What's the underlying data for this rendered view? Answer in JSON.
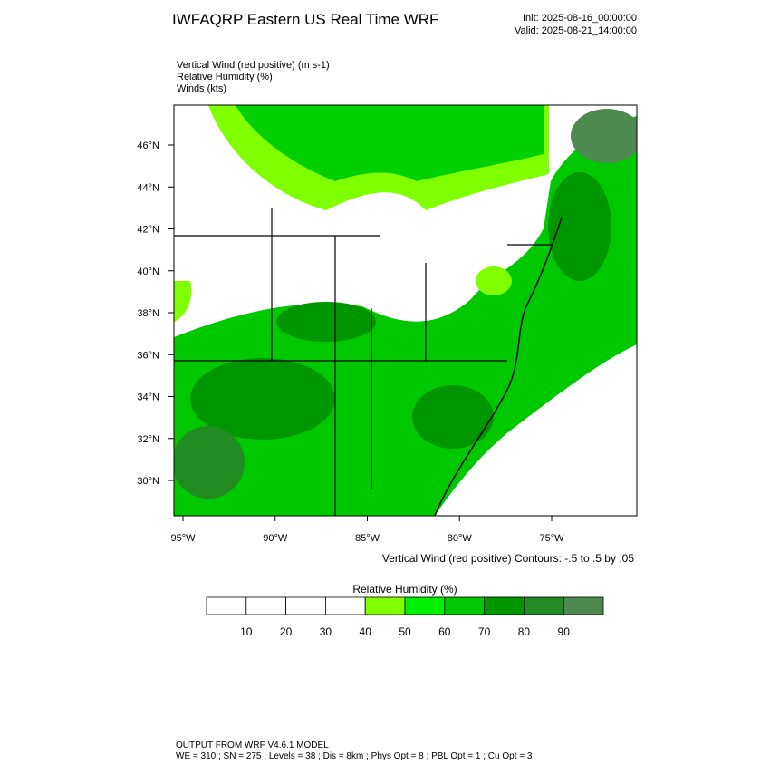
{
  "header": {
    "title": "IWFAQRP Eastern US Real Time WRF",
    "init": "Init: 2025-08-16_00:00:00",
    "valid": "Valid: 2025-08-21_14:00:00"
  },
  "fields": [
    "Vertical Wind (red positive)   (m s-1)",
    "Relative Humidity   (%)",
    "Winds   (kts)"
  ],
  "map": {
    "lat_labels": [
      "46°N",
      "44°N",
      "42°N",
      "40°N",
      "38°N",
      "36°N",
      "34°N",
      "32°N",
      "30°N"
    ],
    "lon_labels": [
      "95°W",
      "90°W",
      "85°W",
      "80°W",
      "75°W"
    ],
    "contour_note": "Vertical Wind (red positive) Contours: -.5 to .5 by .05"
  },
  "colorbar": {
    "title": "Relative Humidity  (%)",
    "colors": [
      "#ffffff",
      "#ffffff",
      "#ffffff",
      "#ffffff",
      "#80ff00",
      "#00f000",
      "#00c800",
      "#009600",
      "#228b22",
      "#4e8a50"
    ],
    "labels": [
      "10",
      "20",
      "30",
      "40",
      "50",
      "60",
      "70",
      "80",
      "90"
    ]
  },
  "footer": [
    "OUTPUT FROM WRF V4.6.1 MODEL",
    "WE = 310 ; SN = 275 ; Levels = 38 ; Dis = 8km ; Phys Opt = 8 ; PBL Opt = 1 ; Cu Opt = 3"
  ]
}
